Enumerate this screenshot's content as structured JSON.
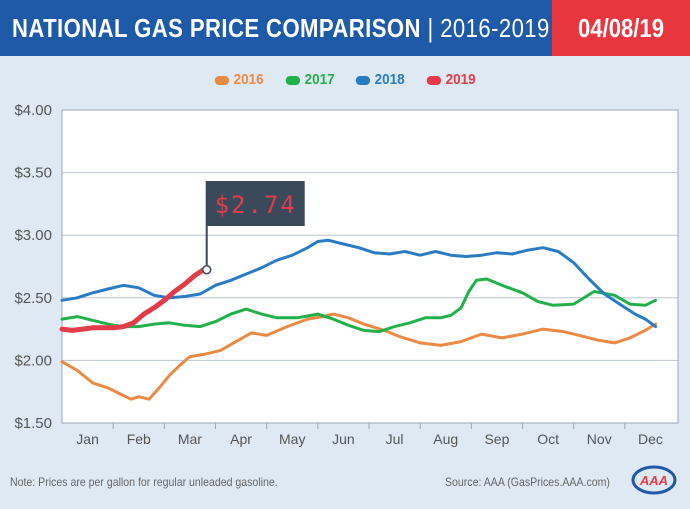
{
  "header": {
    "title": "NATIONAL GAS PRICE COMPARISON",
    "separator": " | ",
    "years": "2016-2019",
    "date": "04/08/19"
  },
  "colors": {
    "header_blue": "#1f5aa8",
    "header_red": "#e8363f",
    "2016": "#e98a45",
    "2017": "#22b04b",
    "2018": "#2a7cc2",
    "2019": "#e23c4b"
  },
  "chart_data": {
    "type": "line",
    "ylim": [
      1.5,
      4.0
    ],
    "yticks": [
      1.5,
      2.0,
      2.5,
      3.0,
      3.5,
      4.0
    ],
    "ytick_labels": [
      "$1.50",
      "$2.00",
      "$2.50",
      "$3.00",
      "$3.50",
      "$4.00"
    ],
    "categories": [
      "Jan",
      "Feb",
      "Mar",
      "Apr",
      "May",
      "Jun",
      "Jul",
      "Aug",
      "Sep",
      "Oct",
      "Nov",
      "Dec"
    ],
    "grid": "horizontal",
    "legend_position": "top-center",
    "series": [
      {
        "name": "2016",
        "color": "#e98a45",
        "x": [
          0,
          0.3,
          0.6,
          0.9,
          1.2,
          1.35,
          1.5,
          1.7,
          1.9,
          2.1,
          2.3,
          2.5,
          2.8,
          3.1,
          3.4,
          3.7,
          4.0,
          4.4,
          4.8,
          5.1,
          5.3,
          5.6,
          5.9,
          6.3,
          6.6,
          7.0,
          7.4,
          7.8,
          8.2,
          8.6,
          9.0,
          9.4,
          9.8,
          10.2,
          10.5,
          10.8,
          11.1,
          11.4,
          11.6
        ],
        "values": [
          1.99,
          1.92,
          1.82,
          1.78,
          1.72,
          1.69,
          1.71,
          1.69,
          1.78,
          1.88,
          1.96,
          2.03,
          2.05,
          2.08,
          2.15,
          2.22,
          2.2,
          2.27,
          2.33,
          2.35,
          2.37,
          2.34,
          2.29,
          2.24,
          2.19,
          2.14,
          2.12,
          2.15,
          2.21,
          2.18,
          2.21,
          2.25,
          2.23,
          2.19,
          2.16,
          2.14,
          2.18,
          2.24,
          2.29
        ]
      },
      {
        "name": "2017",
        "color": "#22b04b",
        "x": [
          0,
          0.3,
          0.6,
          0.9,
          1.2,
          1.5,
          1.8,
          2.1,
          2.4,
          2.7,
          3.0,
          3.3,
          3.6,
          3.9,
          4.2,
          4.6,
          5.0,
          5.3,
          5.6,
          5.9,
          6.2,
          6.5,
          6.8,
          7.1,
          7.4,
          7.6,
          7.8,
          7.95,
          8.1,
          8.3,
          8.6,
          9.0,
          9.3,
          9.6,
          10.0,
          10.4,
          10.8,
          11.1,
          11.4,
          11.6
        ],
        "values": [
          2.33,
          2.35,
          2.32,
          2.29,
          2.27,
          2.27,
          2.29,
          2.3,
          2.28,
          2.27,
          2.31,
          2.37,
          2.41,
          2.37,
          2.34,
          2.34,
          2.37,
          2.33,
          2.28,
          2.24,
          2.23,
          2.27,
          2.3,
          2.34,
          2.34,
          2.36,
          2.42,
          2.55,
          2.64,
          2.65,
          2.6,
          2.54,
          2.47,
          2.44,
          2.45,
          2.55,
          2.52,
          2.45,
          2.44,
          2.48
        ]
      },
      {
        "name": "2018",
        "color": "#2a7cc2",
        "x": [
          0,
          0.3,
          0.6,
          0.9,
          1.2,
          1.5,
          1.8,
          2.1,
          2.4,
          2.7,
          3.0,
          3.3,
          3.6,
          3.9,
          4.2,
          4.5,
          4.8,
          5.0,
          5.2,
          5.5,
          5.8,
          6.1,
          6.4,
          6.7,
          7.0,
          7.3,
          7.6,
          7.9,
          8.2,
          8.5,
          8.8,
          9.1,
          9.4,
          9.7,
          10.0,
          10.3,
          10.6,
          10.9,
          11.2,
          11.4,
          11.6
        ],
        "values": [
          2.48,
          2.5,
          2.54,
          2.57,
          2.6,
          2.58,
          2.52,
          2.5,
          2.51,
          2.53,
          2.6,
          2.64,
          2.69,
          2.74,
          2.8,
          2.84,
          2.9,
          2.95,
          2.96,
          2.93,
          2.9,
          2.86,
          2.85,
          2.87,
          2.84,
          2.87,
          2.84,
          2.83,
          2.84,
          2.86,
          2.85,
          2.88,
          2.9,
          2.87,
          2.78,
          2.65,
          2.53,
          2.45,
          2.37,
          2.33,
          2.27
        ]
      },
      {
        "name": "2019",
        "color": "#e23c4b",
        "x": [
          0,
          0.2,
          0.4,
          0.6,
          0.8,
          1.0,
          1.2,
          1.4,
          1.6,
          1.8,
          2.0,
          2.2,
          2.4,
          2.6,
          2.75
        ],
        "values": [
          2.25,
          2.24,
          2.25,
          2.26,
          2.26,
          2.26,
          2.27,
          2.3,
          2.37,
          2.42,
          2.48,
          2.55,
          2.61,
          2.68,
          2.72
        ]
      }
    ],
    "annotation": {
      "text": "$2.74",
      "series": "2019"
    }
  },
  "footer": {
    "note": "Note: Prices are per gallon for regular unleaded gasoline.",
    "source": "Source: AAA (GasPrices.AAA.com)"
  },
  "logo": {
    "text": "AAA"
  }
}
